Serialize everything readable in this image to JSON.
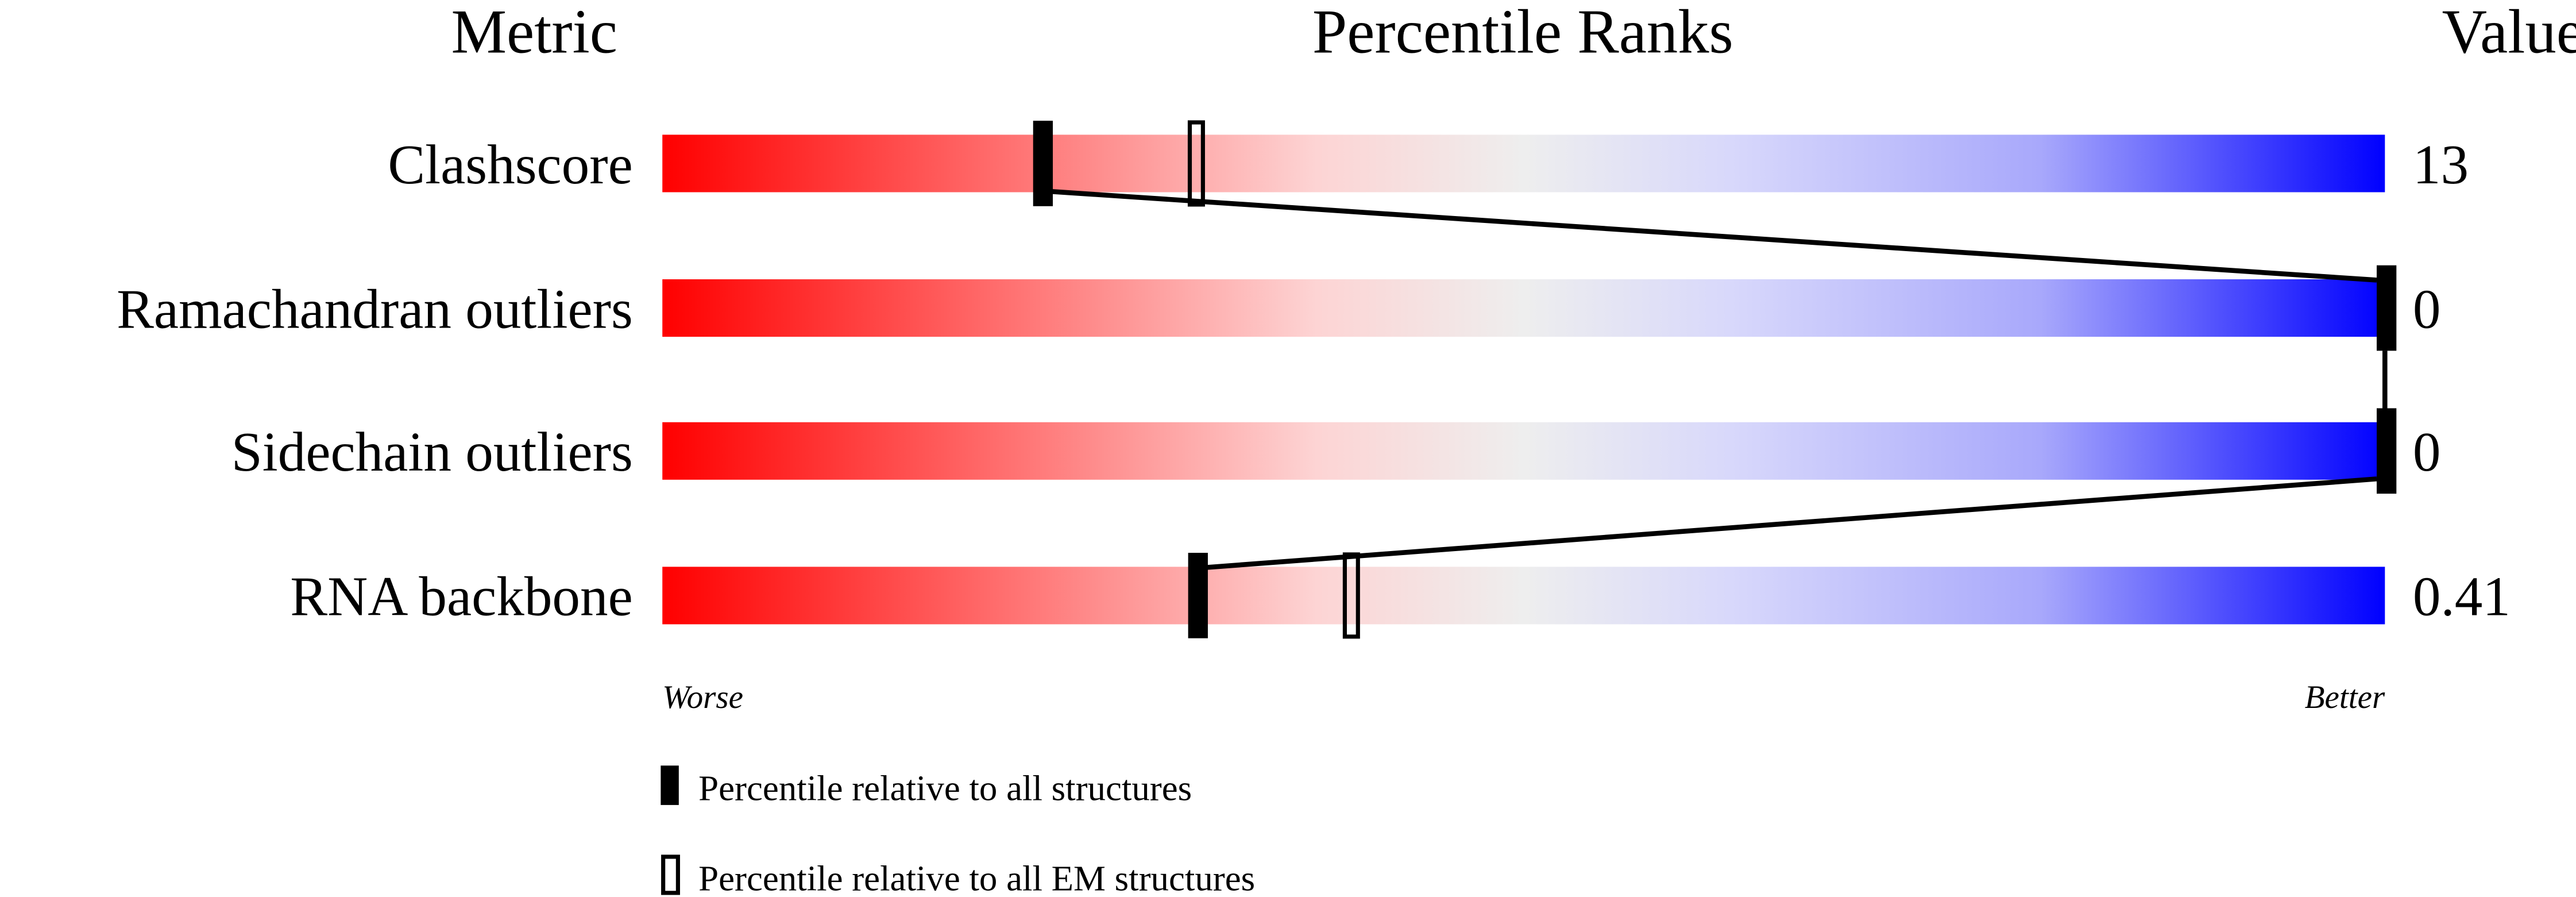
{
  "chart_data": {
    "type": "percentile-slider",
    "headers": {
      "metric": "Metric",
      "ranks": "Percentile Ranks",
      "value": "Value"
    },
    "xlim": [
      0,
      100
    ],
    "rows": [
      {
        "metric": "Clashscore",
        "value": "13",
        "percentile_all": 22,
        "percentile_em": 31
      },
      {
        "metric": "Ramachandran outliers",
        "value": "0",
        "percentile_all": 100,
        "percentile_em": null
      },
      {
        "metric": "Sidechain outliers",
        "value": "0",
        "percentile_all": 100,
        "percentile_em": null
      },
      {
        "metric": "RNA backbone",
        "value": "0.41",
        "percentile_all": 31,
        "percentile_em": 40
      }
    ],
    "axis": {
      "worse": "Worse",
      "better": "Better"
    },
    "gradient_colors": [
      "#ff0000",
      "#eeeeee",
      "#0000ff"
    ],
    "legend": [
      {
        "marker": "filled",
        "label": "Percentile relative to all structures"
      },
      {
        "marker": "open",
        "label": "Percentile relative to all EM structures"
      }
    ]
  }
}
